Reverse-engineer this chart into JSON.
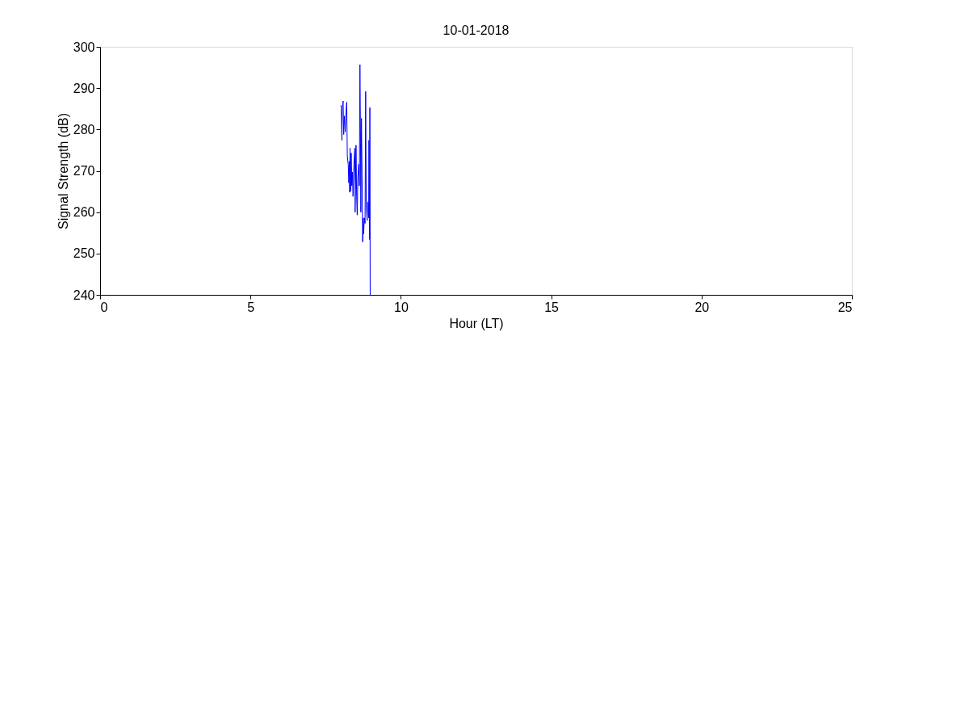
{
  "chart_data": {
    "type": "line",
    "title": "10-01-2018",
    "xlabel": "Hour (LT)",
    "ylabel": "Signal Strength (dB)",
    "xlim": [
      0,
      25
    ],
    "xticks": [
      0,
      5,
      10,
      15,
      20,
      25
    ],
    "ylim": [
      240,
      300
    ],
    "yticks": [
      240,
      250,
      260,
      270,
      280,
      290,
      300
    ],
    "grid": false,
    "marker": "none",
    "line_style": "solid",
    "series": [
      {
        "color": "#0000ff",
        "x": [
          8.01,
          8.02,
          8.04,
          8.05,
          8.08,
          8.1,
          8.12,
          8.15,
          8.17,
          8.2,
          8.22,
          8.25,
          8.27,
          8.29,
          8.3,
          8.31,
          8.33,
          8.35,
          8.37,
          8.39,
          8.41,
          8.44,
          8.47,
          8.48,
          8.51,
          8.53,
          8.55,
          8.57,
          8.6,
          8.62,
          8.64,
          8.66,
          8.67,
          8.69,
          8.71,
          8.73,
          8.75,
          8.76,
          8.79,
          8.81,
          8.83,
          8.85,
          8.88,
          8.9,
          8.93,
          8.94,
          8.96,
          8.97,
          8.98
        ],
        "values": [
          285.9,
          284.9,
          277.4,
          284.3,
          286.9,
          278.8,
          283.3,
          279.4,
          283.3,
          286.6,
          273.6,
          271.6,
          267.1,
          272.3,
          264.8,
          275.5,
          265.1,
          274.3,
          266.4,
          269.7,
          263.8,
          271.6,
          275.5,
          260.0,
          276.2,
          263.8,
          259.3,
          268.4,
          271.6,
          266.4,
          295.7,
          276.8,
          260.0,
          282.7,
          269.0,
          252.8,
          258.6,
          254.7,
          258.6,
          257.3,
          289.2,
          261.3,
          258.0,
          262.5,
          258.6,
          277.4,
          253.4,
          285.3,
          240.0
        ]
      }
    ]
  }
}
